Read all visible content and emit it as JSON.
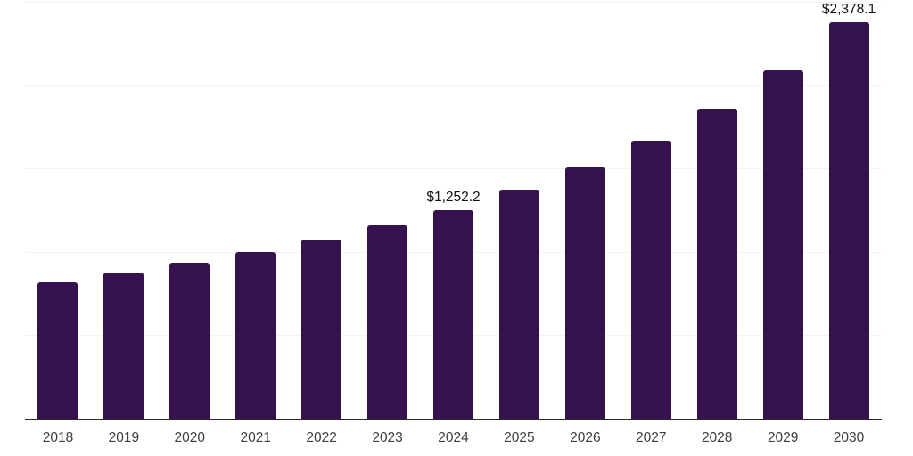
{
  "chart_data": {
    "type": "bar",
    "title": "",
    "xlabel": "",
    "ylabel": "",
    "categories": [
      "2018",
      "2019",
      "2020",
      "2021",
      "2022",
      "2023",
      "2024",
      "2025",
      "2026",
      "2027",
      "2028",
      "2029",
      "2030"
    ],
    "values": [
      819,
      875,
      936,
      1001,
      1075,
      1161,
      1252.2,
      1374,
      1507,
      1668,
      1860,
      2089,
      2378.1
    ],
    "value_labels": {
      "2024": "$1,252.2",
      "2030": "$2,378.1"
    },
    "ylim": [
      0,
      2500
    ],
    "ytick_step": 500,
    "y_axis_labels_visible": false,
    "grid": "horizontal",
    "legend_position": "none"
  },
  "style": {
    "bar_color": "#35124E",
    "gridline_color": "#f2f2f2",
    "axis_line_color": "#2b2b2b",
    "x_label_color": "#3d3d3d",
    "data_label_color": "#111111",
    "background_color": "#ffffff"
  }
}
